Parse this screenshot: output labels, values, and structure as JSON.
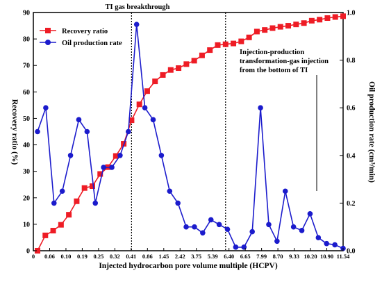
{
  "chart_data": {
    "type": "line",
    "x_tick_labels": [
      "0",
      "0.06",
      "0.10",
      "0.19",
      "0.25",
      "0.32",
      "0.41",
      "0.86",
      "1.45",
      "2.42",
      "3.75",
      "5.39",
      "6.40",
      "6.65",
      "7.99",
      "8.70",
      "9.33",
      "10.20",
      "10.90",
      "11.54"
    ],
    "xlabel": "Injected hydrocarbon pore volume multiple (HCPV)",
    "ylabel_left": "Recovery ratio (%)",
    "ylabel_right": "Oil production rate (cm³/min)",
    "ylim_left": [
      0,
      90
    ],
    "yticks_left": [
      "0",
      "10",
      "20",
      "30",
      "40",
      "50",
      "60",
      "70",
      "80",
      "90"
    ],
    "ylim_right": [
      0,
      1.0
    ],
    "yticks_right": [
      "0.0",
      "0.2",
      "0.4",
      "0.6",
      "0.8",
      "1.0"
    ],
    "legend_position": "top-left",
    "series": [
      {
        "name": "Recovery ratio",
        "axis": "left",
        "color": "#ee1c25",
        "marker": "square",
        "values": [
          0,
          5.8,
          7.6,
          9.8,
          13.6,
          18.7,
          23.7,
          24.4,
          29.0,
          31.6,
          35.8,
          40.4,
          49.3,
          55.3,
          60.3,
          64.0,
          66.4,
          68.3,
          69.0,
          70.5,
          71.8,
          73.8,
          75.8,
          77.7,
          78.0,
          78.3,
          79.1,
          80.6,
          82.8,
          83.4,
          84.1,
          84.6,
          85.0,
          85.5,
          86.0,
          86.9,
          87.3,
          87.9,
          88.3,
          88.6
        ]
      },
      {
        "name": "Oil production rate",
        "axis": "right",
        "color": "#1b1bcc",
        "marker": "circle",
        "values": [
          0.5,
          0.6,
          0.2,
          0.25,
          0.4,
          0.55,
          0.5,
          0.2,
          0.35,
          0.35,
          0.4,
          0.5,
          0.95,
          0.6,
          0.55,
          0.4,
          0.25,
          0.2,
          0.1,
          0.1,
          0.075,
          0.13,
          0.11,
          0.09,
          0.015,
          0.015,
          0.08,
          0.6,
          0.11,
          0.04,
          0.25,
          0.1,
          0.085,
          0.155,
          0.055,
          0.03,
          0.025,
          0.01
        ]
      }
    ],
    "vertical_lines": [
      {
        "after_point": 12,
        "label": "TI gas breakthrough"
      },
      {
        "after_point": 24,
        "label": ""
      }
    ],
    "annotations": [
      {
        "id": "breakthrough",
        "text": "TI gas breakthrough"
      },
      {
        "id": "injection",
        "lines": [
          "Injection-production",
          "transformation-gas injection",
          "from the bottom of TI"
        ]
      }
    ],
    "grid": false
  }
}
